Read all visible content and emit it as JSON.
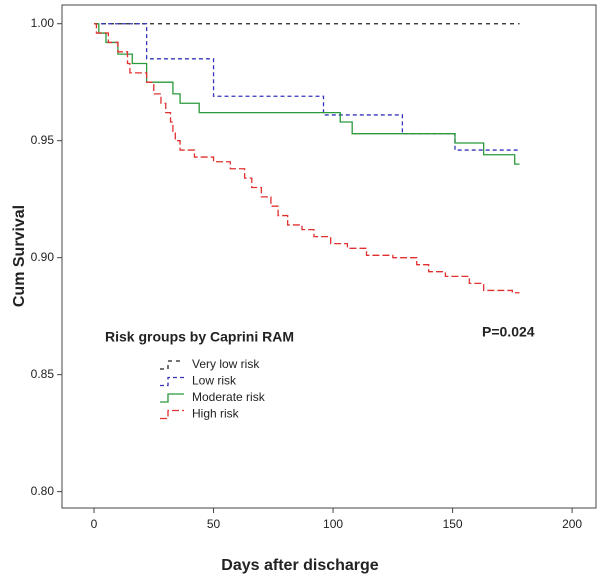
{
  "chart_data": {
    "type": "step",
    "x_label": "Days after discharge",
    "y_label": "Cum Survival",
    "legend_title": "Risk groups by Caprini RAM",
    "annotation": "P=0.024",
    "xlim": [
      -13.4,
      210
    ],
    "xticks": [
      0,
      50,
      100,
      150,
      200
    ],
    "ylim": [
      0.793,
      1.008
    ],
    "yticks": [
      {
        "value": 0.8,
        "label": "0.80"
      },
      {
        "value": 0.85,
        "label": "0.85"
      },
      {
        "value": 0.9,
        "label": "0.90"
      },
      {
        "value": 0.95,
        "label": "0.95"
      },
      {
        "value": 1.0,
        "label": "1.00"
      }
    ],
    "series": [
      {
        "name": "Very low risk",
        "color": "#222222",
        "dash": "4,4",
        "x": [
          0,
          178
        ],
        "values": [
          1.0,
          1.0
        ]
      },
      {
        "name": "Low risk",
        "color": "#3333bb",
        "dash": "4,3",
        "x": [
          0,
          22,
          50,
          96,
          129,
          151,
          178
        ],
        "values": [
          1.0,
          0.985,
          0.969,
          0.961,
          0.953,
          0.946,
          0.946
        ]
      },
      {
        "name": "Moderate risk",
        "color": "#2a9a3a",
        "dash": "none",
        "x": [
          0,
          2,
          5,
          10,
          16,
          22,
          33,
          36,
          44,
          103,
          108,
          151,
          163,
          176,
          178
        ],
        "values": [
          1.0,
          0.996,
          0.992,
          0.987,
          0.983,
          0.975,
          0.97,
          0.966,
          0.962,
          0.958,
          0.953,
          0.949,
          0.944,
          0.94,
          0.94
        ]
      },
      {
        "name": "High risk",
        "color": "#e03030",
        "dash": "7,3",
        "x": [
          0,
          1,
          6,
          10,
          14,
          15,
          22,
          25,
          28,
          30,
          32,
          33,
          34,
          36,
          42,
          50,
          57,
          63,
          66,
          70,
          74,
          77,
          81,
          87,
          92,
          99,
          106,
          114,
          125,
          135,
          140,
          147,
          157,
          163,
          175,
          178
        ],
        "values": [
          1.0,
          0.996,
          0.992,
          0.988,
          0.983,
          0.979,
          0.975,
          0.97,
          0.966,
          0.962,
          0.958,
          0.954,
          0.95,
          0.946,
          0.943,
          0.941,
          0.938,
          0.934,
          0.93,
          0.926,
          0.922,
          0.918,
          0.914,
          0.912,
          0.909,
          0.906,
          0.904,
          0.901,
          0.9,
          0.897,
          0.894,
          0.892,
          0.889,
          0.886,
          0.885,
          0.885
        ]
      }
    ]
  }
}
